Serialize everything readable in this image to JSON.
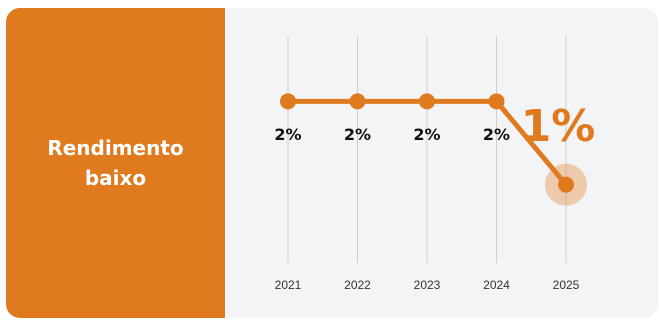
{
  "panel": {
    "title": "Rendimento baixo",
    "color": "#e07a1f"
  },
  "colors": {
    "accent": "#e07a1f",
    "grid": "#cfcfcf",
    "background": "#f3f4f6"
  },
  "chart_data": {
    "type": "line",
    "categories": [
      "2021",
      "2022",
      "2023",
      "2024",
      "2025"
    ],
    "values": [
      2,
      2,
      2,
      2,
      1
    ],
    "data_labels": [
      "2%",
      "2%",
      "2%",
      "2%",
      "1%"
    ],
    "highlight_index": 4,
    "ylim": [
      0,
      3
    ],
    "grid": "vertical",
    "title": "",
    "xlabel": "",
    "ylabel": ""
  }
}
